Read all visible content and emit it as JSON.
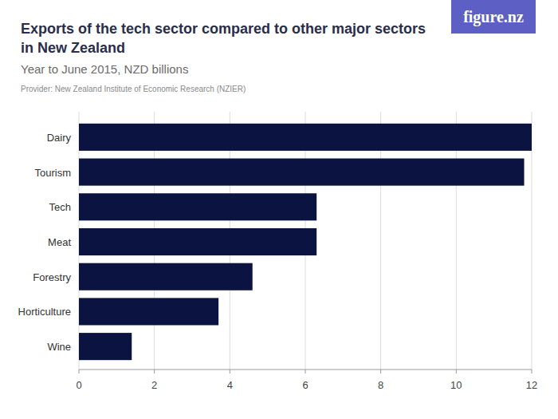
{
  "chart_data": {
    "type": "bar",
    "orientation": "horizontal",
    "title": "Exports of the tech sector compared to other major sectors in New Zealand",
    "subtitle": "Year to June 2015, NZD billions",
    "source": "Provider: New Zealand Institute of Economic Research (NZIER)",
    "logo": "figure.nz",
    "categories": [
      "Dairy",
      "Tourism",
      "Tech",
      "Meat",
      "Forestry",
      "Horticulture",
      "Wine"
    ],
    "values": [
      12.0,
      11.8,
      6.3,
      6.3,
      4.6,
      3.7,
      1.4
    ],
    "color": "#0b1340",
    "xlim": [
      0,
      12
    ],
    "xticks": [
      0,
      2,
      4,
      6,
      8,
      10,
      12
    ],
    "grid": true
  }
}
